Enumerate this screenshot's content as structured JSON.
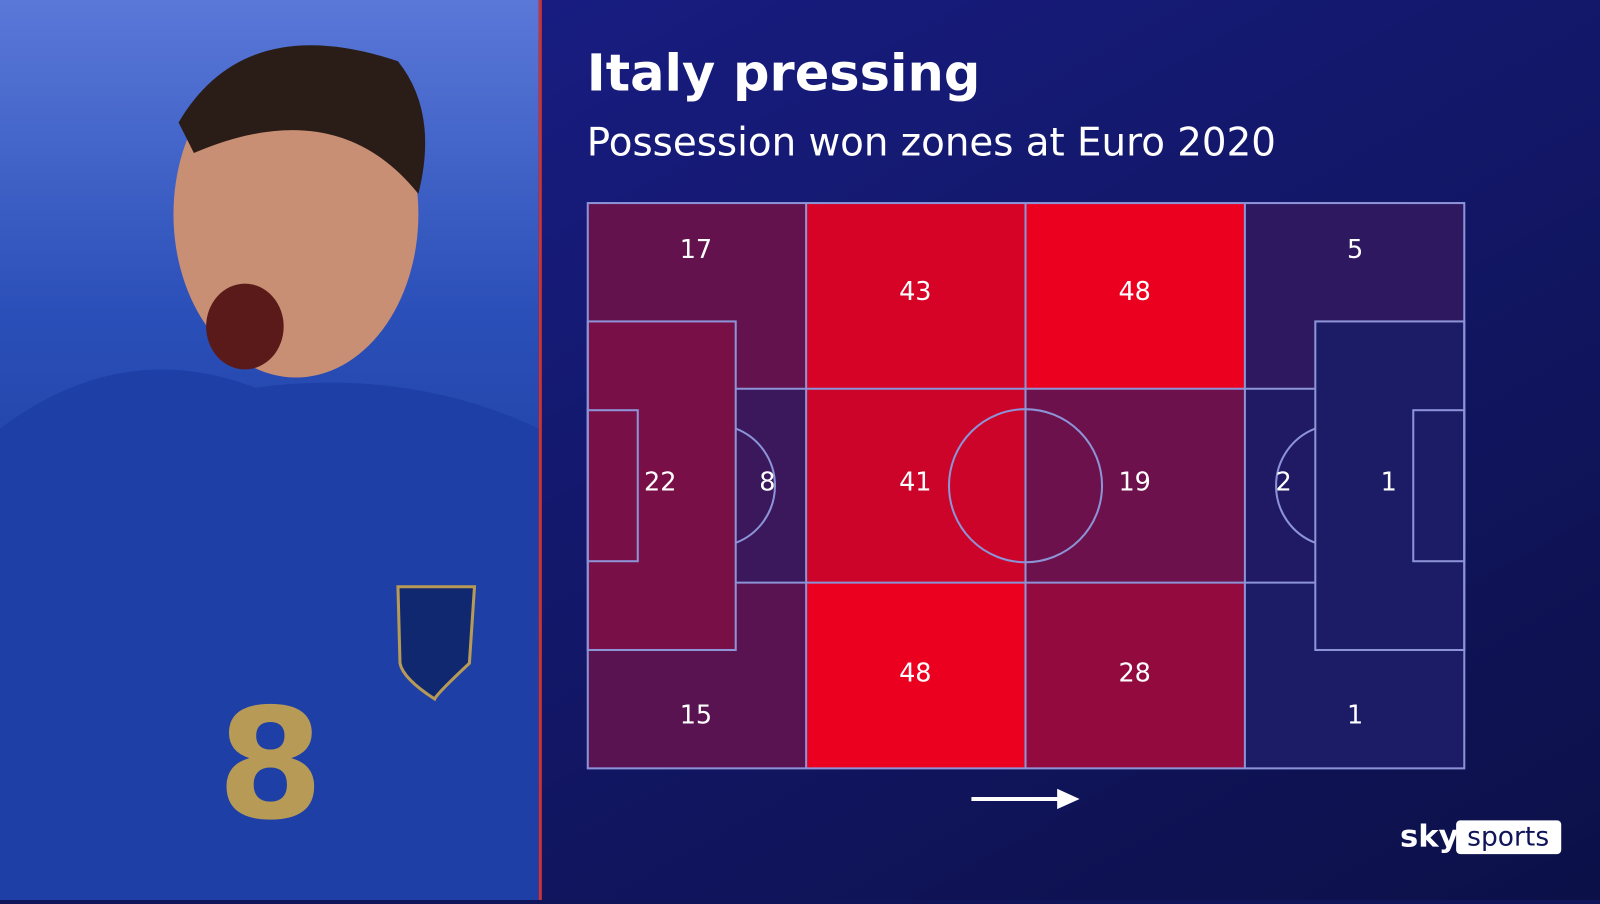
{
  "chart_data": {
    "type": "heatmap",
    "title": "Italy pressing",
    "subtitle": "Possession won zones at Euro 2020",
    "values": [
      17,
      43,
      48,
      5,
      22,
      8,
      41,
      19,
      2,
      1,
      15,
      48,
      28,
      1
    ],
    "colors": [
      "#1c1b66",
      "#ec0020"
    ]
  },
  "branding": {
    "sky": "sky",
    "sports": "sports"
  }
}
